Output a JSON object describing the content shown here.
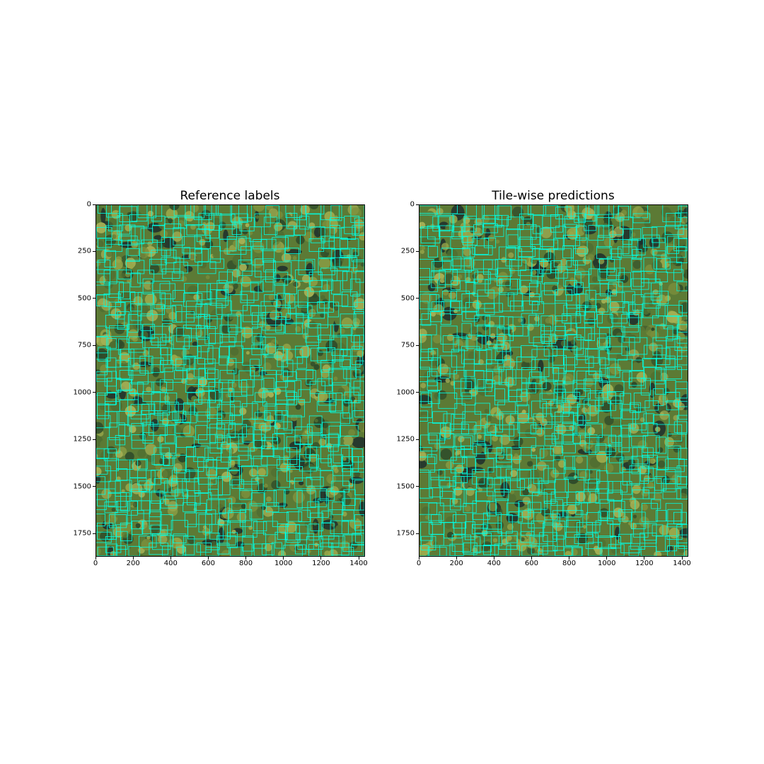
{
  "figure": {
    "panels": [
      {
        "id": "reference",
        "title": "Reference labels",
        "x_ticks": [
          "0",
          "200",
          "400",
          "600",
          "800",
          "1000",
          "1200",
          "1400"
        ],
        "y_ticks": [
          "0",
          "250",
          "500",
          "750",
          "1000",
          "1250",
          "1500",
          "1750"
        ],
        "box_color": "#00ffe4",
        "seed": 17
      },
      {
        "id": "predictions",
        "title": "Tile-wise predictions",
        "x_ticks": [
          "0",
          "200",
          "400",
          "600",
          "800",
          "1000",
          "1200",
          "1400"
        ],
        "y_ticks": [
          "0",
          "250",
          "500",
          "750",
          "1000",
          "1250",
          "1500",
          "1750"
        ],
        "box_color": "#00ffe4",
        "seed": 53
      }
    ],
    "image_extent": {
      "width": 1430,
      "height": 1870
    },
    "colors": {
      "canopy_dark": "#2d4a2a",
      "canopy_mid": "#5c7a35",
      "canopy_light": "#9aa84a",
      "gap": "#1d2e2c",
      "box": "#00ffe4"
    }
  }
}
